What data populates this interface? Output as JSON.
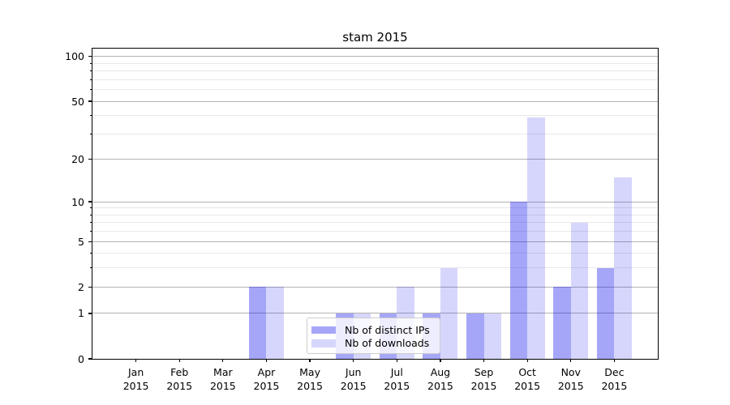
{
  "chart_data": {
    "type": "bar",
    "title": "stam 2015",
    "categories": [
      "Jan",
      "Feb",
      "Mar",
      "Apr",
      "May",
      "Jun",
      "Jul",
      "Aug",
      "Sep",
      "Oct",
      "Nov",
      "Dec"
    ],
    "year_label": "2015",
    "series": [
      {
        "name": "Nb of distinct IPs",
        "color": "rgba(0,0,235,0.35)",
        "values": [
          0,
          0,
          0,
          2,
          0,
          1,
          1,
          1,
          1,
          10,
          2,
          3
        ]
      },
      {
        "name": "Nb of downloads",
        "color": "rgba(0,0,235,0.16)",
        "values": [
          0,
          0,
          0,
          2,
          0,
          1,
          2,
          3,
          1,
          39,
          7,
          15
        ]
      }
    ],
    "scale": "log1p",
    "ylim": [
      0,
      113
    ],
    "y_major_ticks": [
      0,
      1,
      2,
      5,
      10,
      20,
      50,
      100
    ],
    "y_minor_ticks": [
      3,
      4,
      6,
      7,
      8,
      9,
      30,
      40,
      60,
      70,
      80,
      90
    ],
    "xlabel": "",
    "ylabel": "",
    "grid": "on",
    "legend_position": "inside lower-center",
    "colors": {
      "bar_dark_solid": "#a7a7f6",
      "bar_light_solid": "#d9d9f9",
      "grid_major": "#b3b3b3",
      "grid_minor": "#e8e8e8",
      "spine": "#000000",
      "text": "#000000"
    }
  }
}
